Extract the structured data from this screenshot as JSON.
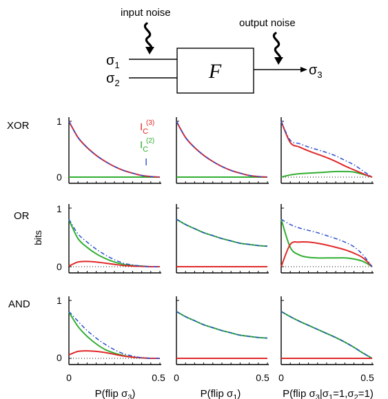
{
  "diagram": {
    "input_noise_label": "input noise",
    "output_noise_label": "output noise",
    "input1": "σ",
    "input1_sub": "1",
    "input2": "σ",
    "input2_sub": "2",
    "function": "F",
    "output": "σ",
    "output_sub": "3"
  },
  "legend": {
    "ic3_main": "I",
    "ic3_sub": "C",
    "ic3_sup": "(3)",
    "ic2_main": "I",
    "ic2_sub": "C",
    "ic2_sup": "(2)",
    "i_main": "I"
  },
  "colors": {
    "ic3": "#e02828",
    "ic2": "#2fae2f",
    "i": "#2a4fd0",
    "dotted": "#000000"
  },
  "row_labels": [
    "XOR",
    "OR",
    "AND"
  ],
  "ylabel": "bits",
  "xlabels": [
    {
      "pre": "P(flip σ",
      "sub": "3",
      "post": ")"
    },
    {
      "pre": "P(flip σ",
      "sub": "1",
      "post": ")"
    },
    {
      "pre": "P(flip σ",
      "sub": "3",
      "post": "|σ",
      "sub2": "1",
      "post2": "=1,σ",
      "sub3": "2",
      "post3": "=1)"
    }
  ],
  "chart_data": {
    "type": "line",
    "xlim": [
      0,
      0.5
    ],
    "ylim": [
      0,
      1
    ],
    "x": [
      0,
      0.05,
      0.1,
      0.15,
      0.2,
      0.25,
      0.3,
      0.35,
      0.4,
      0.45,
      0.5
    ],
    "x_tick_labels": [
      "0",
      "0.5"
    ],
    "y_tick_labels": [
      "0",
      "1"
    ],
    "panels": [
      {
        "row": "XOR",
        "col": 1,
        "series": [
          {
            "name": "I_C^(3)",
            "values": [
              1,
              0.71,
              0.53,
              0.39,
              0.28,
              0.19,
              0.12,
              0.07,
              0.03,
              0.01,
              0
            ]
          },
          {
            "name": "I_C^(2)",
            "values": [
              0,
              0,
              0,
              0,
              0,
              0,
              0,
              0,
              0,
              0,
              0
            ]
          },
          {
            "name": "I",
            "values": [
              1,
              0.71,
              0.53,
              0.39,
              0.28,
              0.19,
              0.12,
              0.07,
              0.03,
              0.01,
              0
            ]
          }
        ]
      },
      {
        "row": "XOR",
        "col": 2,
        "series": [
          {
            "name": "I_C^(3)",
            "values": [
              1,
              0.71,
              0.53,
              0.39,
              0.28,
              0.19,
              0.12,
              0.07,
              0.03,
              0.01,
              0
            ]
          },
          {
            "name": "I_C^(2)",
            "values": [
              0,
              0,
              0,
              0,
              0,
              0,
              0,
              0,
              0,
              0,
              0
            ]
          },
          {
            "name": "I",
            "values": [
              1,
              0.71,
              0.53,
              0.39,
              0.28,
              0.19,
              0.12,
              0.07,
              0.03,
              0.01,
              0
            ]
          }
        ]
      },
      {
        "row": "XOR",
        "col": 3,
        "series": [
          {
            "name": "I_C^(3)",
            "values": [
              1,
              0.62,
              0.54,
              0.47,
              0.41,
              0.35,
              0.28,
              0.2,
              0.13,
              0.06,
              0
            ]
          },
          {
            "name": "I_C^(2)",
            "values": [
              0,
              0.04,
              0.06,
              0.07,
              0.08,
              0.09,
              0.1,
              0.1,
              0.09,
              0.05,
              0
            ]
          },
          {
            "name": "I",
            "values": [
              1,
              0.66,
              0.6,
              0.54,
              0.49,
              0.44,
              0.38,
              0.3,
              0.22,
              0.11,
              0
            ]
          }
        ]
      },
      {
        "row": "OR",
        "col": 1,
        "series": [
          {
            "name": "I_C^(3)",
            "values": [
              0.01,
              0.08,
              0.09,
              0.08,
              0.06,
              0.04,
              0.02,
              0.01,
              0.005,
              0,
              0
            ]
          },
          {
            "name": "I_C^(2)",
            "values": [
              0.8,
              0.48,
              0.33,
              0.22,
              0.14,
              0.08,
              0.04,
              0.02,
              0.01,
              0,
              0
            ]
          },
          {
            "name": "I",
            "values": [
              0.81,
              0.56,
              0.42,
              0.3,
              0.2,
              0.12,
              0.06,
              0.03,
              0.01,
              0,
              0
            ]
          }
        ]
      },
      {
        "row": "OR",
        "col": 2,
        "series": [
          {
            "name": "I_C^(3)",
            "values": [
              0,
              0,
              0,
              0,
              0,
              0,
              0,
              0,
              0,
              0,
              0
            ]
          },
          {
            "name": "I_C^(2)",
            "values": [
              0.81,
              0.72,
              0.65,
              0.58,
              0.53,
              0.48,
              0.44,
              0.4,
              0.38,
              0.36,
              0.35
            ]
          },
          {
            "name": "I",
            "values": [
              0.81,
              0.72,
              0.65,
              0.58,
              0.53,
              0.48,
              0.44,
              0.4,
              0.38,
              0.36,
              0.35
            ]
          }
        ]
      },
      {
        "row": "OR",
        "col": 3,
        "series": [
          {
            "name": "I_C^(3)",
            "values": [
              0,
              0.38,
              0.42,
              0.42,
              0.4,
              0.37,
              0.33,
              0.29,
              0.23,
              0.15,
              0
            ]
          },
          {
            "name": "I_C^(2)",
            "values": [
              0.81,
              0.33,
              0.2,
              0.16,
              0.15,
              0.15,
              0.15,
              0.15,
              0.13,
              0.09,
              0
            ]
          },
          {
            "name": "I",
            "values": [
              0.81,
              0.72,
              0.66,
              0.62,
              0.58,
              0.53,
              0.48,
              0.42,
              0.34,
              0.2,
              0
            ]
          }
        ]
      },
      {
        "row": "AND",
        "col": 1,
        "series": [
          {
            "name": "I_C^(3)",
            "values": [
              0.06,
              0.12,
              0.13,
              0.12,
              0.1,
              0.07,
              0.04,
              0.02,
              0.01,
              0,
              0
            ]
          },
          {
            "name": "I_C^(2)",
            "values": [
              0.8,
              0.55,
              0.38,
              0.25,
              0.15,
              0.09,
              0.05,
              0.02,
              0.01,
              0,
              0
            ]
          },
          {
            "name": "I",
            "values": [
              0.81,
              0.64,
              0.48,
              0.35,
              0.24,
              0.15,
              0.08,
              0.04,
              0.01,
              0,
              0
            ]
          }
        ]
      },
      {
        "row": "AND",
        "col": 2,
        "series": [
          {
            "name": "I_C^(3)",
            "values": [
              0,
              0,
              0,
              0,
              0,
              0,
              0,
              0,
              0,
              0,
              0
            ]
          },
          {
            "name": "I_C^(2)",
            "values": [
              0.81,
              0.72,
              0.65,
              0.58,
              0.53,
              0.48,
              0.44,
              0.4,
              0.38,
              0.36,
              0.35
            ]
          },
          {
            "name": "I",
            "values": [
              0.81,
              0.72,
              0.65,
              0.58,
              0.53,
              0.48,
              0.44,
              0.4,
              0.38,
              0.36,
              0.35
            ]
          }
        ]
      },
      {
        "row": "AND",
        "col": 3,
        "series": [
          {
            "name": "I_C^(3)",
            "values": [
              0,
              0,
              0,
              0,
              0,
              0,
              0,
              0,
              0,
              0,
              0
            ]
          },
          {
            "name": "I_C^(2)",
            "values": [
              0.81,
              0.72,
              0.64,
              0.57,
              0.5,
              0.43,
              0.36,
              0.28,
              0.19,
              0.09,
              0
            ]
          },
          {
            "name": "I",
            "values": [
              0.81,
              0.72,
              0.64,
              0.57,
              0.5,
              0.43,
              0.36,
              0.28,
              0.19,
              0.09,
              0
            ]
          }
        ]
      }
    ]
  }
}
